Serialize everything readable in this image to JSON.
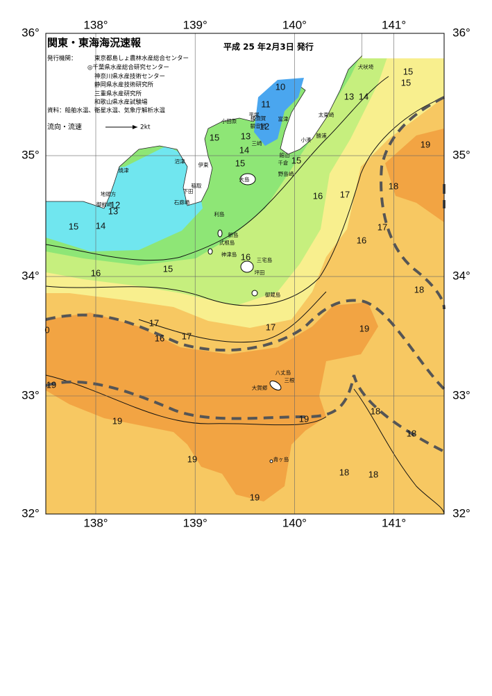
{
  "header": {
    "title": "関東・東海海況速報",
    "date": "平成 25 年2月3日 発行"
  },
  "issuers": {
    "label": "発行機関：",
    "items": [
      "東京都島しょ農林水産総合センター",
      "◎千葉県水産総合研究センター",
      "神奈川県水産技術センター",
      "静岡県水産技術研究所",
      "三重県水産研究所",
      "和歌山県水産試験場"
    ]
  },
  "source": "資料：船舶水温、衛星水温、気象庁解析水温",
  "legend": {
    "label": "流向・流速",
    "speed": "2kt"
  },
  "map": {
    "lon_ticks": [
      {
        "value": 138,
        "label": "138°"
      },
      {
        "value": 139,
        "label": "139°"
      },
      {
        "value": 140,
        "label": "140°"
      },
      {
        "value": 141,
        "label": "141°"
      }
    ],
    "lat_ticks": [
      {
        "value": 36,
        "label": "36°"
      },
      {
        "value": 35,
        "label": "35°"
      },
      {
        "value": 34,
        "label": "34°"
      },
      {
        "value": 33,
        "label": "33°"
      },
      {
        "value": 32,
        "label": "32°"
      }
    ],
    "isotherm_labels": [
      10,
      11,
      12,
      13,
      14,
      15,
      15,
      15,
      13,
      14,
      15,
      15,
      16,
      17,
      18,
      17,
      16,
      19,
      18,
      19,
      17,
      17,
      16,
      17,
      16,
      16,
      15,
      15,
      14,
      13,
      12,
      0,
      19,
      19,
      19,
      18,
      18,
      19,
      18,
      18,
      19
    ],
    "place_names": [
      "犬吠埼",
      "太東崎",
      "勝浦",
      "小湊",
      "館山",
      "千倉",
      "野島崎",
      "富津",
      "横須賀",
      "観音崎",
      "平塚",
      "小田原",
      "三崎",
      "大島",
      "沼津",
      "焼津",
      "伊東",
      "稲取",
      "下田",
      "石廊崎",
      "地頭方",
      "御前崎",
      "利島",
      "新島",
      "式根島",
      "神津島",
      "三宅島",
      "坪田",
      "御蔵島",
      "八丈島",
      "三根",
      "大賀郷",
      "青ヶ島"
    ]
  }
}
